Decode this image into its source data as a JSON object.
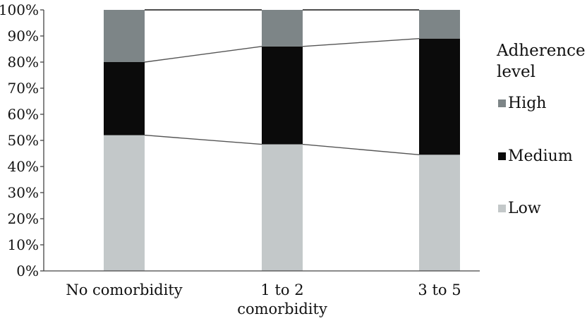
{
  "chart_data": {
    "type": "bar",
    "stacked": true,
    "categories": [
      [
        "No comorbidity"
      ],
      [
        "1 to 2",
        "comorbidity"
      ],
      [
        "3 to 5"
      ]
    ],
    "series": [
      {
        "name": "Low",
        "values": [
          52,
          48.5,
          44.5
        ],
        "color": "#c3c8c9"
      },
      {
        "name": "Medium",
        "values": [
          28,
          37.5,
          44.5
        ],
        "color": "#0b0b0b"
      },
      {
        "name": "High",
        "values": [
          20,
          14,
          11
        ],
        "color": "#7d8587"
      }
    ],
    "y_ticks": [
      "0%",
      "10%",
      "20%",
      "30%",
      "40%",
      "50%",
      "60%",
      "70%",
      "80%",
      "90%",
      "100%"
    ],
    "ylim": [
      0,
      100
    ],
    "legend": {
      "title_lines": [
        "Adherence",
        "level"
      ],
      "order": [
        "High",
        "Medium",
        "Low"
      ],
      "position": "right"
    },
    "series_lines": true,
    "grid": false
  }
}
